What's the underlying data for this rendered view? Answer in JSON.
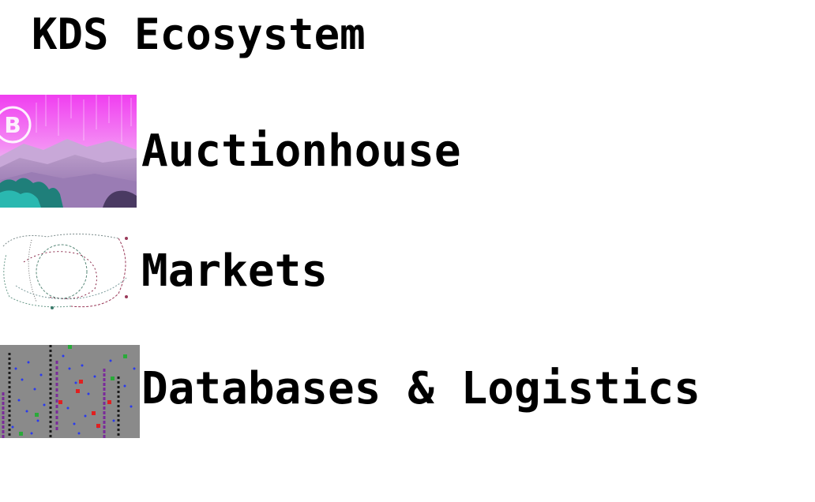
{
  "page": {
    "title": "KDS Ecosystem"
  },
  "links": [
    {
      "label": "Auctionhouse",
      "thumbnail_icon": "synthwave-bitcoin-landscape-image"
    },
    {
      "label": "Markets",
      "thumbnail_icon": "tangled-line-sketch-image"
    },
    {
      "label": "Databases & Logistics",
      "thumbnail_icon": "data-scatter-grid-image"
    }
  ],
  "colors": {
    "background": "#ffffff",
    "text": "#000000",
    "magenta_sky": "#f050f0",
    "mountain_lavender": "#b08cc8",
    "teal_foliage": "#2ab8b0",
    "grid_gray": "#8a8a8a"
  }
}
